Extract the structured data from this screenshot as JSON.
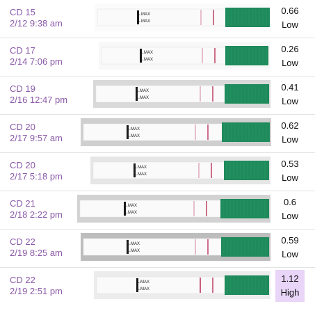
{
  "colors": {
    "label_text": "#8b5aa8",
    "high_highlight": "#e8d5f7",
    "strip_handle": "#1f8a5b",
    "test_line": "#c24d6e"
  },
  "tests": [
    {
      "cd": "CD 15",
      "datetime": "2/12 9:38 am",
      "ratio": "0.66",
      "level": "Low",
      "arrow1": "MAX",
      "arrow2": "MAX"
    },
    {
      "cd": "CD 17",
      "datetime": "2/14 7:06 pm",
      "ratio": "0.26",
      "level": "Low",
      "arrow1": "MAX",
      "arrow2": "MAX"
    },
    {
      "cd": "CD 19",
      "datetime": "2/16 12:47 pm",
      "ratio": "0.41",
      "level": "Low",
      "arrow1": "MAX",
      "arrow2": "MAX"
    },
    {
      "cd": "CD 20",
      "datetime": "2/17 9:57 am",
      "ratio": "0.62",
      "level": "Low",
      "arrow1": "MAX",
      "arrow2": "MAX"
    },
    {
      "cd": "CD 20",
      "datetime": "2/17 5:18 pm",
      "ratio": "0.53",
      "level": "Low",
      "arrow1": "MAX",
      "arrow2": "MAX"
    },
    {
      "cd": "CD 21",
      "datetime": "2/18 2:22 pm",
      "ratio": "0.6",
      "level": "Low",
      "arrow1": "MAX",
      "arrow2": "MAX"
    },
    {
      "cd": "CD 22",
      "datetime": "2/19 8:25 am",
      "ratio": "0.59",
      "level": "Low",
      "arrow1": "MAX",
      "arrow2": "MAX"
    },
    {
      "cd": "CD 22",
      "datetime": "2/19 2:51 pm",
      "ratio": "1.12",
      "level": "High",
      "arrow1": "MAX",
      "arrow2": "MAX"
    }
  ]
}
